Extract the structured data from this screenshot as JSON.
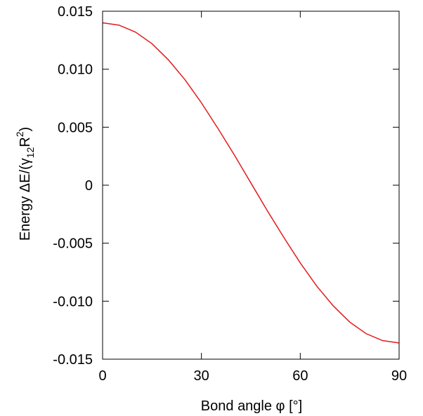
{
  "chart_data": {
    "type": "line",
    "title": "",
    "xlabel": "Bond angle φ [°]",
    "ylabel_parts": {
      "prefix": "Energy ΔE/(γ",
      "sub": "12",
      "mid": "R",
      "sup": "2",
      "suffix": ")"
    },
    "xlim": [
      0,
      90
    ],
    "ylim": [
      -0.015,
      0.015
    ],
    "xticks": [
      0,
      30,
      60,
      90
    ],
    "xtick_labels": [
      "0",
      "30",
      "60",
      "90"
    ],
    "yticks": [
      0.015,
      0.01,
      0.005,
      0,
      -0.005,
      -0.01,
      -0.015
    ],
    "ytick_labels": [
      "0.015",
      "0.010",
      "0.005",
      "0",
      "-0.005",
      "-0.010",
      "-0.015"
    ],
    "grid": false,
    "series": [
      {
        "color": "#e41a1c",
        "x": [
          0,
          5,
          10,
          15,
          20,
          25,
          30,
          35,
          40,
          45,
          50,
          55,
          60,
          65,
          70,
          75,
          80,
          85,
          90
        ],
        "y": [
          0.014,
          0.0138,
          0.0132,
          0.0122,
          0.0108,
          0.0091,
          0.0071,
          0.0049,
          0.0026,
          0.0002,
          -0.0022,
          -0.0045,
          -0.0067,
          -0.0087,
          -0.0104,
          -0.0118,
          -0.0128,
          -0.0134,
          -0.0136
        ]
      }
    ]
  }
}
